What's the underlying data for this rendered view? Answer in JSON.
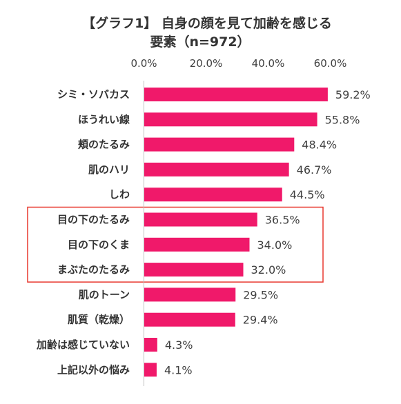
{
  "chart_data": {
    "type": "bar",
    "orientation": "horizontal",
    "title_line1": "【グラフ1】 自身の顔を見て加齢を感じる",
    "title_line2": "要素（n=972）",
    "xlim": [
      0,
      60
    ],
    "ticks": [
      "0.0%",
      "20.0%",
      "40.0%",
      "60.0%"
    ],
    "tick_values": [
      0,
      20,
      40,
      60
    ],
    "categories": [
      "シミ・ソバカス",
      "ほうれい線",
      "頬のたるみ",
      "肌のハリ",
      "しわ",
      "目の下のたるみ",
      "目の下のくま",
      "まぶたのたるみ",
      "肌のトーン",
      "肌質（乾燥）",
      "加齢は感じていない",
      "上記以外の悩み"
    ],
    "values": [
      59.2,
      55.8,
      48.4,
      46.7,
      44.5,
      36.5,
      34.0,
      32.0,
      29.5,
      29.4,
      4.3,
      4.1
    ],
    "value_labels": [
      "59.2%",
      "55.8%",
      "48.4%",
      "46.7%",
      "44.5%",
      "36.5%",
      "34.0%",
      "32.0%",
      "29.5%",
      "29.4%",
      "4.3%",
      "4.1%"
    ],
    "highlight_categories": [
      "目の下のたるみ",
      "目の下のくま",
      "まぶたのたるみ"
    ],
    "bar_color": "#f0196a",
    "highlight_box_color": "#e8392f",
    "grid": false
  }
}
